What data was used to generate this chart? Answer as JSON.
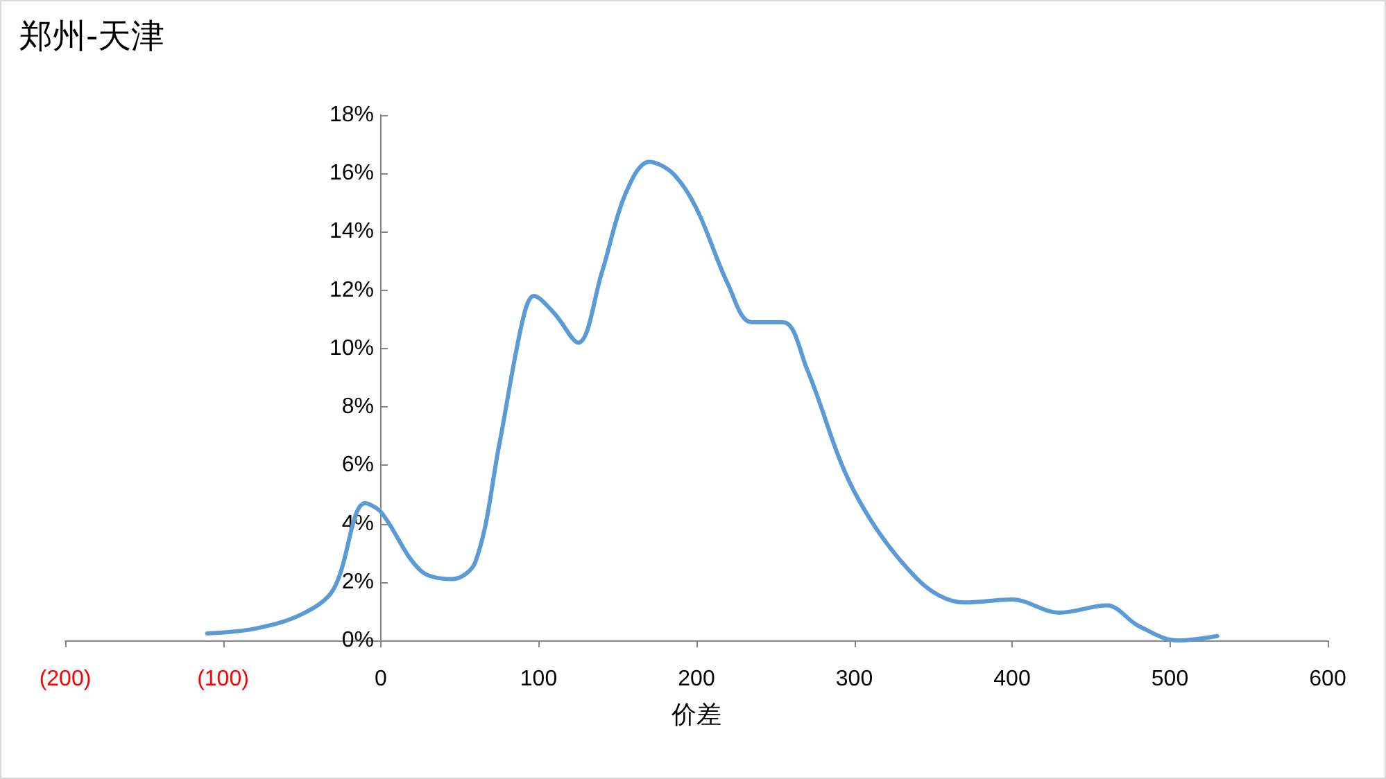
{
  "chart_data": {
    "type": "line",
    "title": "郑州-天津",
    "xlabel": "价差",
    "x": [
      -110,
      -80,
      -50,
      -30,
      -10,
      0,
      25,
      45,
      60,
      75,
      90,
      97,
      110,
      125,
      140,
      155,
      170,
      185,
      200,
      220,
      235,
      255,
      270,
      300,
      340,
      370,
      400,
      430,
      460,
      480,
      505,
      530
    ],
    "series": [
      {
        "color": "#5b9bd5",
        "values": [
          0.24,
          0.4,
          0.9,
          1.75,
          4.7,
          4.4,
          2.4,
          2.1,
          2.7,
          6.7,
          11.0,
          11.8,
          11.2,
          10.2,
          12.6,
          15.3,
          16.4,
          16.0,
          14.8,
          12.2,
          10.9,
          10.9,
          9.3,
          5.1,
          2.1,
          1.3,
          1.4,
          0.95,
          1.2,
          0.5,
          0.0,
          0.15
        ]
      }
    ],
    "xlim": [
      -200,
      600
    ],
    "xticks": [
      {
        "value": -200,
        "label": "(200)"
      },
      {
        "value": -100,
        "label": "(100)"
      },
      0,
      100,
      200,
      300,
      400,
      500,
      600
    ],
    "ylim": [
      0,
      18
    ],
    "yticks": [
      {
        "value": 0,
        "label": "0%"
      },
      {
        "value": 2,
        "label": "2%"
      },
      {
        "value": 4,
        "label": "4%"
      },
      {
        "value": 6,
        "label": "6%"
      },
      {
        "value": 8,
        "label": "8%"
      },
      {
        "value": 10,
        "label": "10%"
      },
      {
        "value": 12,
        "label": "12%"
      },
      {
        "value": 14,
        "label": "14%"
      },
      {
        "value": 16,
        "label": "16%"
      },
      {
        "value": 18,
        "label": "18%"
      }
    ],
    "marker": "none",
    "line_style": "solid"
  }
}
